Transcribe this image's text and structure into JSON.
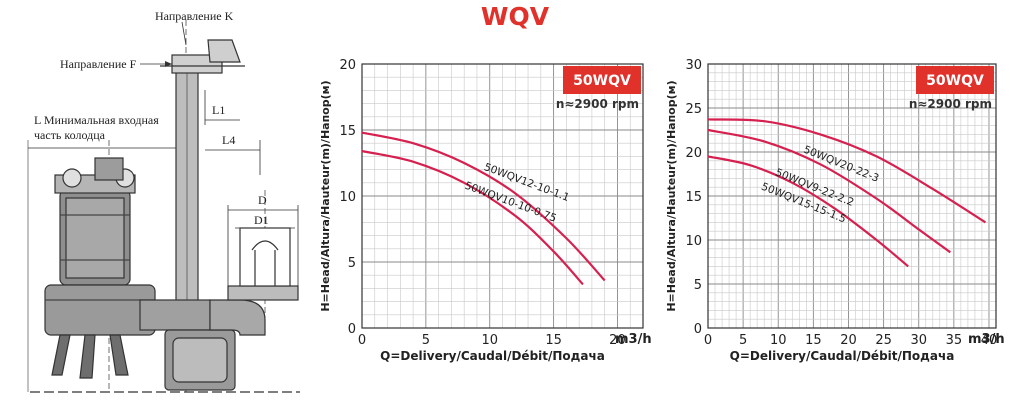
{
  "title": "WQV",
  "brand_color": "#e0312b",
  "curve_color": "#d6204f",
  "drawing": {
    "label_k": "Направление K",
    "label_f": "Направление F",
    "label_l_line1": "L Минимальная входная",
    "label_l_line2": "часть колодца",
    "label_l1": "L1",
    "label_l4": "L4",
    "label_d": "D",
    "label_d1": "D1"
  },
  "charts": [
    {
      "badge": "50WQV",
      "speed": "n≈2900 rpm",
      "xlabel": "Q=Delivery/Caudal/Débit/Подача",
      "xunit": "m3/h",
      "ylabel": "H=Head/Altura/Hauteur(m)/Напор(м)",
      "xticks": [
        "0",
        "5",
        "10",
        "15",
        "20"
      ],
      "yticks": [
        "0",
        "5",
        "10",
        "15",
        "20"
      ]
    },
    {
      "badge": "50WQV",
      "speed": "n≈2900 rpm",
      "xlabel": "Q=Delivery/Caudal/Débit/Подача",
      "xunit": "m3/h",
      "ylabel": "H=Head/Altura/Hauteur(m)/Напор(м)",
      "xticks": [
        "0",
        "5",
        "10",
        "15",
        "20",
        "25",
        "30",
        "35",
        "40"
      ],
      "yticks": [
        "0",
        "5",
        "10",
        "15",
        "20",
        "25",
        "30"
      ]
    }
  ],
  "chart_data": [
    {
      "type": "line",
      "xlabel": "Q=Delivery/Caudal/Débit/Подача",
      "ylabel": "H=Head/Altura/Hauteur(m)/Напор(м)",
      "xlim": [
        0,
        22
      ],
      "ylim": [
        0,
        20
      ],
      "grid": true,
      "series": [
        {
          "name": "50WQV12-10-1.1",
          "x": [
            0,
            4,
            8,
            12,
            16,
            19
          ],
          "y": [
            14.8,
            14.0,
            12.5,
            10.2,
            6.8,
            3.6
          ]
        },
        {
          "name": "50WQV10-10-0.75",
          "x": [
            0,
            4,
            8,
            12,
            15,
            17.3
          ],
          "y": [
            13.4,
            12.6,
            11.0,
            8.5,
            5.8,
            3.3
          ]
        }
      ]
    },
    {
      "type": "line",
      "xlabel": "Q=Delivery/Caudal/Débit/Подача",
      "ylabel": "H=Head/Altura/Hauteur(m)/Напор(м)",
      "xlim": [
        0,
        41
      ],
      "ylim": [
        0,
        30
      ],
      "grid": true,
      "series": [
        {
          "name": "50WQV20-22-3",
          "x": [
            0,
            8,
            16,
            24,
            32,
            39.5
          ],
          "y": [
            23.7,
            23.5,
            22.0,
            19.5,
            15.8,
            12.0
          ]
        },
        {
          "name": "50WQV9-22-2.2",
          "x": [
            0,
            8,
            16,
            24,
            30,
            34.5
          ],
          "y": [
            22.5,
            21.2,
            18.6,
            14.7,
            11.2,
            8.6
          ]
        },
        {
          "name": "50WQV15-15-1.5",
          "x": [
            0,
            6,
            12,
            18,
            24,
            28.5
          ],
          "y": [
            19.5,
            18.5,
            16.5,
            13.6,
            10.0,
            7.0
          ]
        }
      ]
    }
  ]
}
